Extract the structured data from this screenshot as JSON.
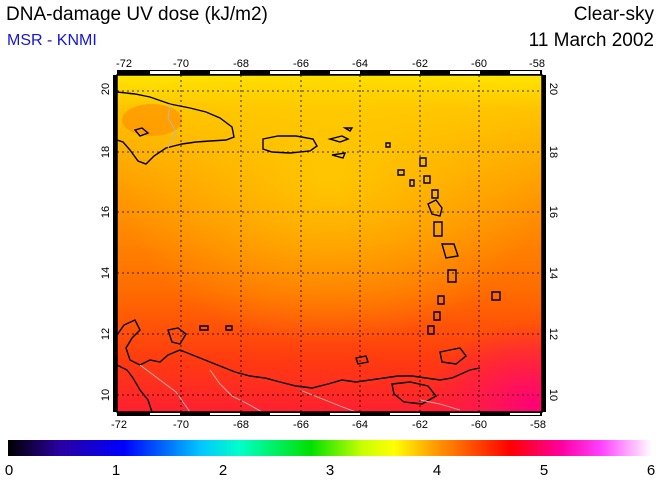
{
  "header": {
    "title": "DNA-damage UV dose (kJ/m2)",
    "credit": "MSR - KNMI",
    "sky_condition": "Clear-sky",
    "date": "11 March 2002"
  },
  "map": {
    "longitude_ticks": [
      "-72",
      "-70",
      "-68",
      "-66",
      "-64",
      "-62",
      "-60",
      "-58"
    ],
    "latitude_ticks": [
      "10",
      "12",
      "14",
      "16",
      "18",
      "20"
    ],
    "region": "Caribbean Sea / Lesser Antilles",
    "lon_range": [
      -72,
      -58
    ],
    "lat_range": [
      9.5,
      20.5
    ]
  },
  "colorbar": {
    "labels": [
      "0",
      "1",
      "2",
      "3",
      "4",
      "5",
      "6"
    ],
    "range": [
      0,
      6
    ],
    "stops": [
      "#000000",
      "#2a00a0",
      "#0000ff",
      "#00c8ff",
      "#00ffc8",
      "#00e000",
      "#c8ff00",
      "#ffff00",
      "#ffa000",
      "#ff5000",
      "#ff0000",
      "#ff00a0",
      "#ff40ff",
      "#ffffff"
    ]
  }
}
